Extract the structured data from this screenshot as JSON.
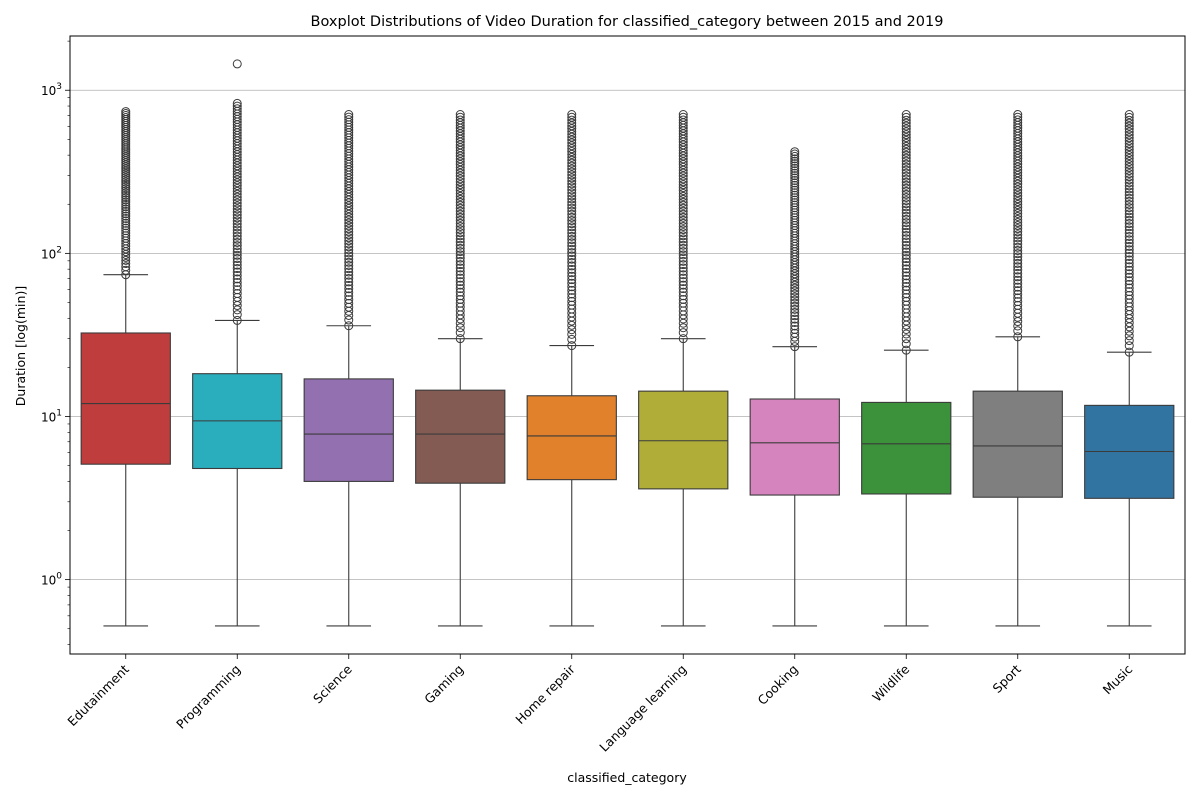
{
  "chart_data": {
    "type": "boxplot",
    "title": "Boxplot Distributions of Video Duration for classified_category between 2015 and 2019",
    "xlabel": "classified_category",
    "ylabel": "Duration [log(min)]",
    "y_scale": "log",
    "ylim": [
      0.35,
      2150
    ],
    "y_ticks": [
      {
        "value": 1,
        "base": "10",
        "exp": "0"
      },
      {
        "value": 10,
        "base": "10",
        "exp": "1"
      },
      {
        "value": 100,
        "base": "10",
        "exp": "2"
      },
      {
        "value": 1000,
        "base": "10",
        "exp": "3"
      }
    ],
    "grid": "horizontal",
    "categories": [
      "Edutainment",
      "Programming",
      "Science",
      "Gaming",
      "Home repair",
      "Language learning",
      "Cooking",
      "Wildlife",
      "Sport",
      "Music"
    ],
    "boxes": [
      {
        "category": "Edutainment",
        "color": "#c03d3e",
        "whisker_low": 0.52,
        "q1": 5.1,
        "median": 12,
        "q3": 32.5,
        "whisker_high": 74,
        "outlier_range": [
          74,
          740
        ]
      },
      {
        "category": "Programming",
        "color": "#2aadbc",
        "whisker_low": 0.52,
        "q1": 4.8,
        "median": 9.4,
        "q3": 18.3,
        "whisker_high": 38.8,
        "outlier_range": [
          38.8,
          830
        ],
        "extra_outliers": [
          1450
        ]
      },
      {
        "category": "Science",
        "color": "#9371b0",
        "whisker_low": 0.52,
        "q1": 4.0,
        "median": 7.8,
        "q3": 17,
        "whisker_high": 36,
        "outlier_range": [
          36,
          710
        ]
      },
      {
        "category": "Gaming",
        "color": "#845b53",
        "whisker_low": 0.52,
        "q1": 3.9,
        "median": 7.8,
        "q3": 14.5,
        "whisker_high": 30,
        "outlier_range": [
          30,
          710
        ]
      },
      {
        "category": "Home repair",
        "color": "#e1812b",
        "whisker_low": 0.52,
        "q1": 4.1,
        "median": 7.6,
        "q3": 13.4,
        "whisker_high": 27.2,
        "outlier_range": [
          27.2,
          710
        ]
      },
      {
        "category": "Language learning",
        "color": "#b0ae39",
        "whisker_low": 0.52,
        "q1": 3.6,
        "median": 7.1,
        "q3": 14.3,
        "whisker_high": 30,
        "outlier_range": [
          30,
          710
        ]
      },
      {
        "category": "Cooking",
        "color": "#d684bd",
        "whisker_low": 0.52,
        "q1": 3.3,
        "median": 6.9,
        "q3": 12.8,
        "whisker_high": 26.8,
        "outlier_range": [
          26.8,
          420
        ]
      },
      {
        "category": "Wildlife",
        "color": "#3b923b",
        "whisker_low": 0.52,
        "q1": 3.35,
        "median": 6.8,
        "q3": 12.2,
        "whisker_high": 25.5,
        "outlier_range": [
          25.5,
          710
        ]
      },
      {
        "category": "Sport",
        "color": "#7f7f7f",
        "whisker_low": 0.52,
        "q1": 3.2,
        "median": 6.6,
        "q3": 14.3,
        "whisker_high": 30.8,
        "outlier_range": [
          30.8,
          710
        ]
      },
      {
        "category": "Music",
        "color": "#3274a1",
        "whisker_low": 0.52,
        "q1": 3.15,
        "median": 6.1,
        "q3": 11.7,
        "whisker_high": 24.8,
        "outlier_range": [
          24.8,
          710
        ]
      }
    ]
  }
}
